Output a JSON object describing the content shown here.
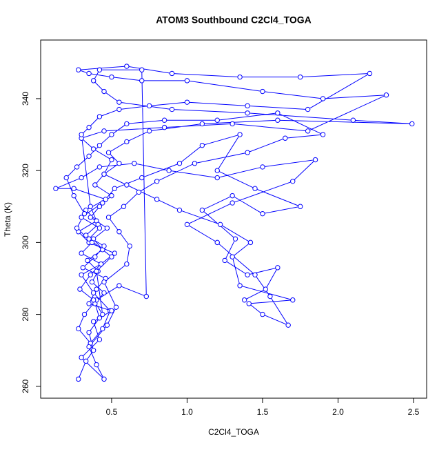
{
  "chart_data": {
    "type": "line",
    "markers": true,
    "title": "ATOM3 Southbound C2Cl4_TOGA",
    "x_label": "C2Cl4_TOGA",
    "y_label": "Theta (K)",
    "color": "#0000ff",
    "xlim": [
      0.03,
      2.587
    ],
    "ylim": [
      256.7,
      356.3
    ],
    "xticks": [
      0.5,
      {
        "value": 1,
        "label": "1.0"
      },
      1.5,
      {
        "value": 2,
        "label": "2.0"
      },
      2.5
    ],
    "yticks": [
      260,
      280,
      300,
      320,
      340
    ],
    "x": [
      0.28,
      0.33,
      0.38,
      0.35,
      0.42,
      0.39,
      0.45,
      0.37,
      0.41,
      0.34,
      0.44,
      0.38,
      0.47,
      0.36,
      0.42,
      0.5,
      0.39,
      0.45,
      0.55,
      0.48,
      0.6,
      0.75,
      1.1,
      1.6,
      2.49,
      2.1,
      1.4,
      0.9,
      0.55,
      0.45,
      0.38,
      0.42,
      0.7,
      0.73,
      0.55,
      0.4,
      0.32,
      0.28,
      0.36,
      0.44,
      0.49,
      0.38,
      0.3,
      0.43,
      0.52,
      0.35,
      0.28,
      0.4,
      0.33,
      0.46,
      0.25,
      0.13,
      0.3,
      0.42,
      0.65,
      0.88,
      1.2,
      1.5,
      1.85,
      1.7,
      1.3,
      1.0,
      1.2,
      1.45,
      1.55,
      1.67,
      1.5,
      1.41,
      1.7,
      1.35,
      1.3,
      1.42,
      1.22,
      0.95,
      0.8,
      0.6,
      0.45,
      0.5,
      0.38,
      0.3,
      0.45,
      0.85,
      1.3,
      1.8,
      2.32,
      1.9,
      1.5,
      1.0,
      0.7,
      0.5,
      0.35,
      0.28,
      0.6,
      0.9,
      1.35,
      1.75,
      2.21,
      1.8,
      1.4,
      1.0,
      0.75,
      0.55,
      0.42,
      0.35,
      0.3,
      0.36,
      0.41,
      0.33,
      0.45,
      0.39,
      0.31,
      0.46,
      0.4,
      0.35,
      0.5,
      0.38,
      0.42,
      0.3,
      0.45,
      0.4,
      0.35,
      0.47,
      0.53,
      0.45,
      0.6,
      0.62,
      0.55,
      0.48,
      0.58,
      0.68,
      0.8,
      1.05,
      1.4,
      1.65,
      1.9,
      1.6,
      1.2,
      0.85,
      0.6,
      0.5,
      0.42,
      0.35,
      0.27,
      0.2,
      0.25,
      0.32,
      0.27,
      0.37,
      0.3,
      0.43,
      0.36,
      0.29,
      0.38,
      0.44,
      0.4,
      0.5,
      0.35,
      0.42,
      0.3,
      0.44,
      0.52,
      0.7,
      0.95,
      1.1,
      1.35,
      1.2,
      1.45,
      1.75,
      1.5,
      1.3,
      1.1,
      1.32,
      1.25,
      1.4,
      1.6,
      1.52,
      1.38
    ],
    "values": [
      262,
      267,
      270,
      275,
      279,
      283,
      286,
      289,
      292,
      295,
      298,
      301,
      304,
      307,
      310,
      313,
      316,
      319,
      322,
      325,
      328,
      331,
      333,
      334,
      333,
      334,
      336,
      337,
      339,
      342,
      345,
      348,
      348,
      285,
      288,
      284,
      280,
      276,
      272,
      276,
      281,
      286,
      291,
      294,
      297,
      300,
      303,
      306,
      309,
      312,
      315,
      315,
      318,
      321,
      322,
      320,
      318,
      321,
      323,
      317,
      311,
      305,
      300,
      291,
      285,
      277,
      280,
      283,
      284,
      288,
      296,
      300,
      305,
      309,
      312,
      316,
      319,
      323,
      326,
      329,
      331,
      332,
      333,
      331,
      341,
      340,
      342,
      345,
      345,
      346,
      347,
      348,
      349,
      347,
      346,
      346,
      347,
      337,
      338,
      339,
      338,
      337,
      335,
      332,
      330,
      310,
      305,
      302,
      299,
      296,
      293,
      290,
      287,
      283,
      281,
      278,
      273,
      268,
      262,
      266,
      271,
      277,
      282,
      289,
      294,
      299,
      303,
      307,
      310,
      314,
      317,
      322,
      325,
      329,
      330,
      336,
      334,
      334,
      333,
      330,
      327,
      324,
      321,
      318,
      313,
      308,
      304,
      300,
      297,
      294,
      291,
      287,
      284,
      280,
      292,
      296,
      301,
      304,
      307,
      311,
      315,
      318,
      322,
      327,
      330,
      320,
      315,
      310,
      308,
      313,
      309,
      301,
      295,
      291,
      293,
      287,
      284
    ]
  }
}
